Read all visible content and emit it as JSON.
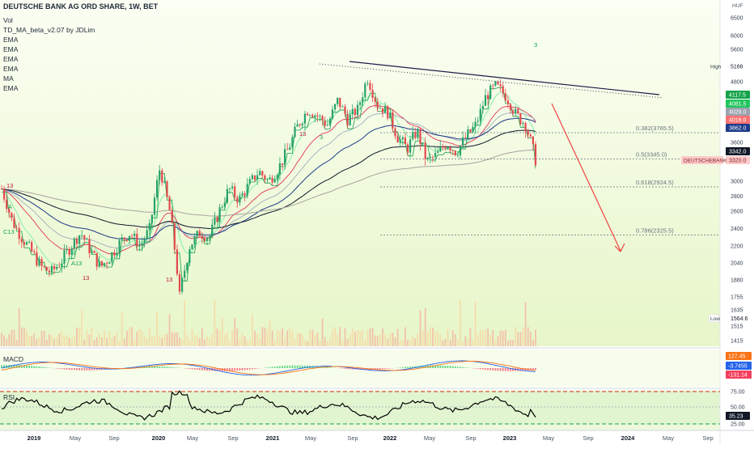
{
  "header": {
    "title": "DEUTSCHE BANK AG ORD SHARE, 1W, BET",
    "indicators": [
      "Vol",
      "TD_MA_beta_v2.07 by JDLim",
      "EMA",
      "EMA",
      "EMA",
      "EMA",
      "MA",
      "EMA"
    ]
  },
  "panels": {
    "macd_label": "MACD",
    "rsi_label": "RSI"
  },
  "colors": {
    "background_top": "#fbfff4",
    "background_bottom": "#e9f8cf",
    "candle_up": "#26a269",
    "candle_down": "#e5484d",
    "trendline": "#1e1b4b",
    "arrow": "#ef4444"
  },
  "chart_data": {
    "type": "candlestick",
    "currency": "HUF",
    "x_labels": [
      "2019",
      "May",
      "Sep",
      "2020",
      "May",
      "Sep",
      "2021",
      "May",
      "Sep",
      "2022",
      "May",
      "Sep",
      "2023",
      "May",
      "Sep",
      "2024",
      "May",
      "Sep"
    ],
    "y_ticks": [
      6500,
      6000,
      5600,
      5166,
      4800,
      4117.5,
      4081.5,
      4029.0,
      3862.0,
      3600,
      3342.0,
      3320.0,
      3000,
      2800,
      2600,
      2400,
      2200,
      2040,
      1880,
      1755,
      1635,
      1564.6,
      1515,
      1415
    ],
    "y_ticks_main": [
      6500,
      6000,
      5600,
      4800,
      3600,
      3000,
      2800,
      2600,
      2400,
      2200,
      2040,
      1880,
      1755,
      1635,
      1515,
      1415
    ],
    "high_label": "High",
    "high_value": "5166",
    "low_label": "Low",
    "low_value": "1564.6",
    "price_tags": [
      {
        "value": "4117.5",
        "color": "#16a34a"
      },
      {
        "value": "4081.5",
        "color": "#22c55e"
      },
      {
        "value": "4029.0",
        "color": "#9ca3af"
      },
      {
        "value": "4016.0",
        "color": "#f87171"
      },
      {
        "value": "3862.0",
        "color": "#1e3a8a"
      },
      {
        "value": "3342.0",
        "color": "#111827"
      },
      {
        "value": "3320.0",
        "color": "#fecaca"
      }
    ],
    "symbol_tag": "DEUTSCHEBANK",
    "fib_levels": [
      {
        "label": "0.382(3765.5)",
        "value": 3765.5
      },
      {
        "label": "0.5(3345.0)",
        "value": 3345.0
      },
      {
        "label": "0.618(2924.5)",
        "value": 2924.5
      },
      {
        "label": "0.786(2325.5)",
        "value": 2325.5
      }
    ],
    "td_labels": [
      "13",
      "A",
      "C13",
      "A13",
      "13",
      "3",
      "13",
      "3",
      "13"
    ],
    "weekly_close_path": [
      2900,
      2500,
      2300,
      2150,
      2000,
      1950,
      2050,
      2200,
      2350,
      2150,
      2000,
      2100,
      2250,
      2350,
      2200,
      2400,
      3200,
      2600,
      1750,
      2200,
      2350,
      2300,
      2600,
      2900,
      2750,
      2950,
      3150,
      3000,
      3200,
      3500,
      3900,
      4200,
      4050,
      3900,
      4400,
      4000,
      4200,
      4900,
      4300,
      4150,
      3700,
      3500,
      3800,
      3300,
      3400,
      3600,
      3450,
      3700,
      3900,
      4500,
      4700,
      4500,
      4100,
      3900,
      3330
    ],
    "macd_ticks": [
      "127.45",
      "-3.7455",
      "-131.14"
    ],
    "rsi_ticks": [
      "75.00",
      "50.00",
      "35.23",
      "25.00"
    ],
    "rsi_value": "35.23"
  }
}
